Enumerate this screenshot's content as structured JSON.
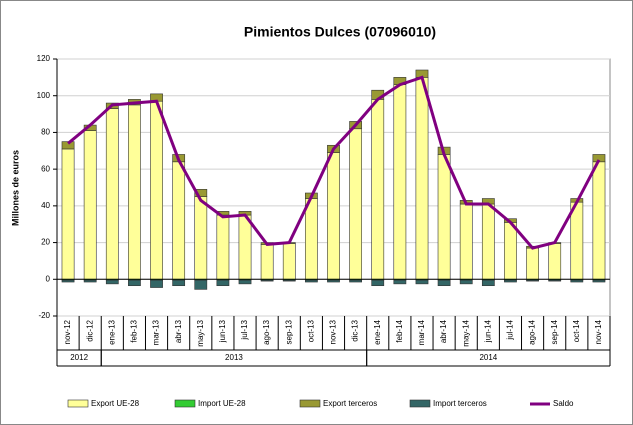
{
  "chart_data": {
    "type": "bar",
    "title": "Pimientos Dulces (07096010)",
    "y_label": "Millones de euros",
    "categories": [
      "nov-12",
      "dic-12",
      "ene-13",
      "feb-13",
      "mar-13",
      "abr-13",
      "may-13",
      "jun-13",
      "jul-13",
      "ago-13",
      "sep-13",
      "oct-13",
      "nov-13",
      "dic-13",
      "ene-14",
      "feb-14",
      "mar-14",
      "abr-14",
      "may-14",
      "jun-14",
      "jul-14",
      "ago-14",
      "sep-14",
      "oct-14",
      "nov-14"
    ],
    "years": [
      "2012",
      "2013",
      "2014"
    ],
    "series": [
      {
        "name": "Export UE-28",
        "type": "bar",
        "color": "#ffff99",
        "values": [
          71,
          81,
          93,
          95,
          97,
          64,
          45,
          35,
          35,
          19,
          19.5,
          44,
          69,
          82,
          98,
          106,
          110,
          68,
          41,
          41,
          31,
          17,
          19.5,
          42,
          64
        ]
      },
      {
        "name": "Import UE-28",
        "type": "bar",
        "color": "#33cc33",
        "values": [
          -0.5,
          -0.5,
          -0.5,
          -0.5,
          -0.5,
          -0.5,
          -0.5,
          -0.5,
          -0.5,
          -0.5,
          -0.5,
          -0.5,
          -0.5,
          -0.5,
          -0.5,
          -0.5,
          -0.5,
          -0.5,
          -0.5,
          -0.5,
          -0.5,
          -0.5,
          -0.5,
          -0.5,
          -0.5
        ]
      },
      {
        "name": "Export terceros",
        "type": "bar",
        "color": "#999933",
        "values": [
          4,
          3,
          3,
          3,
          4,
          4,
          4,
          2,
          2,
          1,
          0.5,
          3,
          4,
          4,
          5,
          4,
          4,
          4,
          2,
          3,
          2,
          1,
          0.5,
          2,
          4
        ]
      },
      {
        "name": "Import terceros",
        "type": "bar",
        "color": "#336666",
        "values": [
          -1,
          -1,
          -2,
          -3,
          -4,
          -3,
          -5,
          -3,
          -2,
          -0.5,
          -0.5,
          -1,
          -1,
          -1,
          -3,
          -2,
          -2,
          -3,
          -2,
          -3,
          -1,
          -0.5,
          -0.5,
          -1,
          -1
        ]
      },
      {
        "name": "Saldo",
        "type": "line",
        "color": "#800080",
        "values": [
          74,
          84,
          95,
          96,
          97,
          65,
          43,
          34,
          35,
          19,
          20,
          45,
          71,
          84,
          98,
          106,
          110,
          68,
          41,
          41,
          31,
          17,
          20,
          42,
          65
        ]
      }
    ],
    "ylim": [
      -20,
      120
    ],
    "yticks": [
      -20,
      0,
      20,
      40,
      60,
      80,
      100,
      120
    ],
    "grid": true,
    "legend": "bottom"
  }
}
